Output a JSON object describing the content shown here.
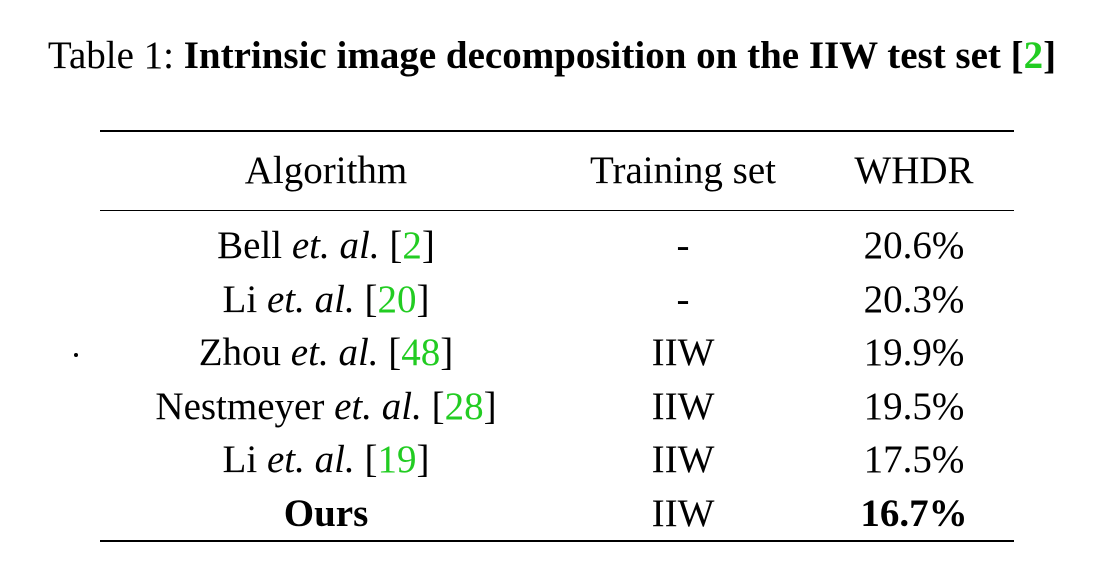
{
  "caption": {
    "label": "Table 1:",
    "title": "Intrinsic image decomposition on the IIW test set",
    "cite_open": "[",
    "cite": "2",
    "cite_close": "]"
  },
  "table": {
    "headers": [
      "Algorithm",
      "Training set",
      "WHDR"
    ],
    "rows": [
      {
        "name": "Bell",
        "etal": "et. al.",
        "cite": "2",
        "training": "-",
        "whdr": "20.6%",
        "bold": false
      },
      {
        "name": "Li",
        "etal": "et. al.",
        "cite": "20",
        "training": "-",
        "whdr": "20.3%",
        "bold": false
      },
      {
        "name": "Zhou",
        "etal": "et. al.",
        "cite": "48",
        "training": "IIW",
        "whdr": "19.9%",
        "bold": false
      },
      {
        "name": "Nestmeyer",
        "etal": "et. al.",
        "cite": "28",
        "training": "IIW",
        "whdr": "19.5%",
        "bold": false
      },
      {
        "name": "Li",
        "etal": "et. al.",
        "cite": "19",
        "training": "IIW",
        "whdr": "17.5%",
        "bold": false
      },
      {
        "name": "Ours",
        "etal": "",
        "cite": "",
        "training": "IIW",
        "whdr": "16.7%",
        "bold": true
      }
    ]
  },
  "colors": {
    "citation": "#22cc22",
    "text": "#000000"
  }
}
